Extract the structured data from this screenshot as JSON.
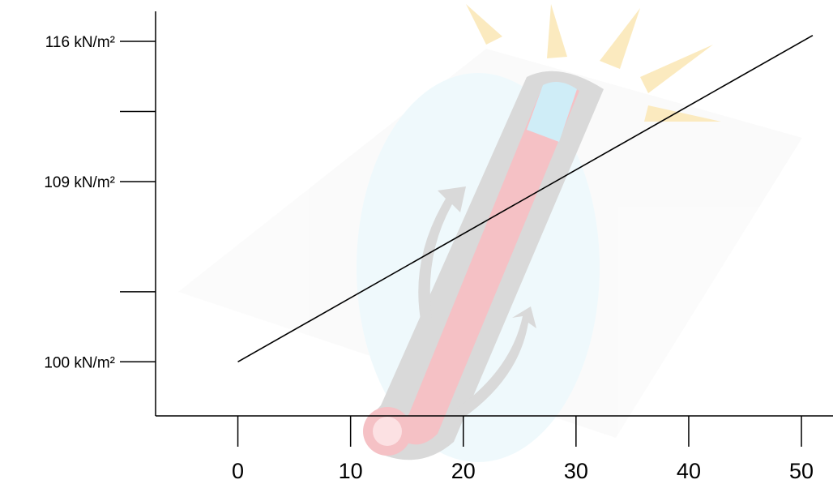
{
  "chart_data": {
    "type": "line",
    "title": "",
    "xlabel": "",
    "ylabel": "",
    "x_ticks": [
      0,
      10,
      20,
      30,
      40,
      50
    ],
    "x_tick_labels": [
      "0",
      "10",
      "20",
      "30",
      "40",
      "50"
    ],
    "y_ticks": [
      100,
      103.5,
      109,
      112.5,
      116
    ],
    "y_tick_labels": [
      "100 kN/m²",
      "",
      "109 kN/m²",
      "",
      "116 kN/m²"
    ],
    "xlim": [
      -7.3,
      52.8
    ],
    "ylim": [
      97.3,
      117.5
    ],
    "series": [
      {
        "values": [
          100,
          116.3
        ],
        "x": [
          0,
          51
        ]
      }
    ],
    "grid": false,
    "legend": "none",
    "background_image": "thermometer-clipart",
    "colors": {
      "line": "#000000",
      "axis": "#000000",
      "thermo_red": "#e2404f",
      "thermo_blue": "#6ec8e8",
      "burst_yellow": "#f3c13a",
      "glow": "#d6f2f8"
    }
  }
}
